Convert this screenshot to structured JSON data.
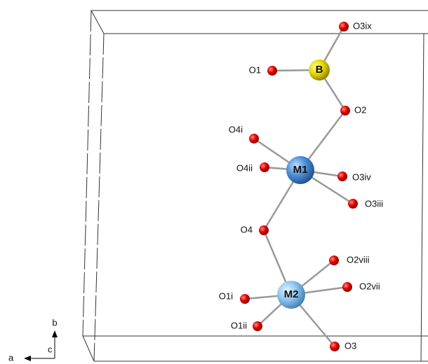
{
  "nodes": [
    {
      "label": "O3ix"
    },
    {
      "label": "B"
    },
    {
      "label": "O1"
    },
    {
      "label": "O2"
    },
    {
      "label": "O4i"
    },
    {
      "label": "M1"
    },
    {
      "label": "O4ii"
    },
    {
      "label": "O3iv"
    },
    {
      "label": "O3iii"
    },
    {
      "label": "O4"
    },
    {
      "label": "O2viii"
    },
    {
      "label": "M2"
    },
    {
      "label": "O2vii"
    },
    {
      "label": "O1i"
    },
    {
      "label": "O1ii"
    },
    {
      "label": "O3"
    }
  ],
  "axes": {
    "a": "a",
    "b": "b",
    "c": "c"
  }
}
